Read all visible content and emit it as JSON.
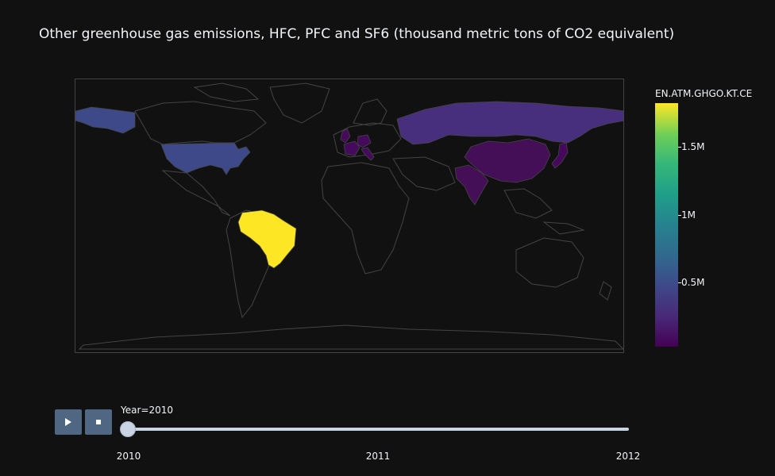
{
  "title": "Other greenhouse gas emissions, HFC, PFC and SF6 (thousand metric tons of CO2 equivalent)",
  "colorbar": {
    "title": "EN.ATM.GHGO.KT.CE",
    "ticks": [
      "1.5M",
      "1M",
      "0.5M"
    ],
    "colorscale": [
      "#440154",
      "#482878",
      "#3e4989",
      "#31688e",
      "#26828e",
      "#1f9e89",
      "#35b779",
      "#6ece58",
      "#fde725"
    ]
  },
  "slider": {
    "current_label": "Year=2010",
    "steps": [
      "2010",
      "2011",
      "2012"
    ],
    "current_index": 0
  },
  "controls": {
    "play_icon": "play-icon",
    "stop_icon": "stop-icon"
  },
  "chart_data": {
    "type": "choropleth",
    "title": "Other greenhouse gas emissions, HFC, PFC and SF6 (thousand metric tons of CO2 equivalent)",
    "colorbar_title": "EN.ATM.GHGO.KT.CE",
    "year": "2010",
    "regions": [
      {
        "name": "Brazil",
        "value": 1800000,
        "color": "#fde725"
      },
      {
        "name": "United States",
        "value": 470000,
        "color": "#3e4989"
      },
      {
        "name": "Russian Federation",
        "value": 330000,
        "color": "#472f7d"
      },
      {
        "name": "China",
        "value": 90000,
        "color": "#440f57"
      },
      {
        "name": "India",
        "value": 90000,
        "color": "#440f57"
      },
      {
        "name": "Japan",
        "value": 100000,
        "color": "#46085c"
      },
      {
        "name": "Germany",
        "value": 60000,
        "color": "#460a5d"
      },
      {
        "name": "France",
        "value": 50000,
        "color": "#460a5d"
      },
      {
        "name": "United Kingdom",
        "value": 40000,
        "color": "#460a5d"
      },
      {
        "name": "Italy",
        "value": 50000,
        "color": "#460a5d"
      }
    ]
  }
}
